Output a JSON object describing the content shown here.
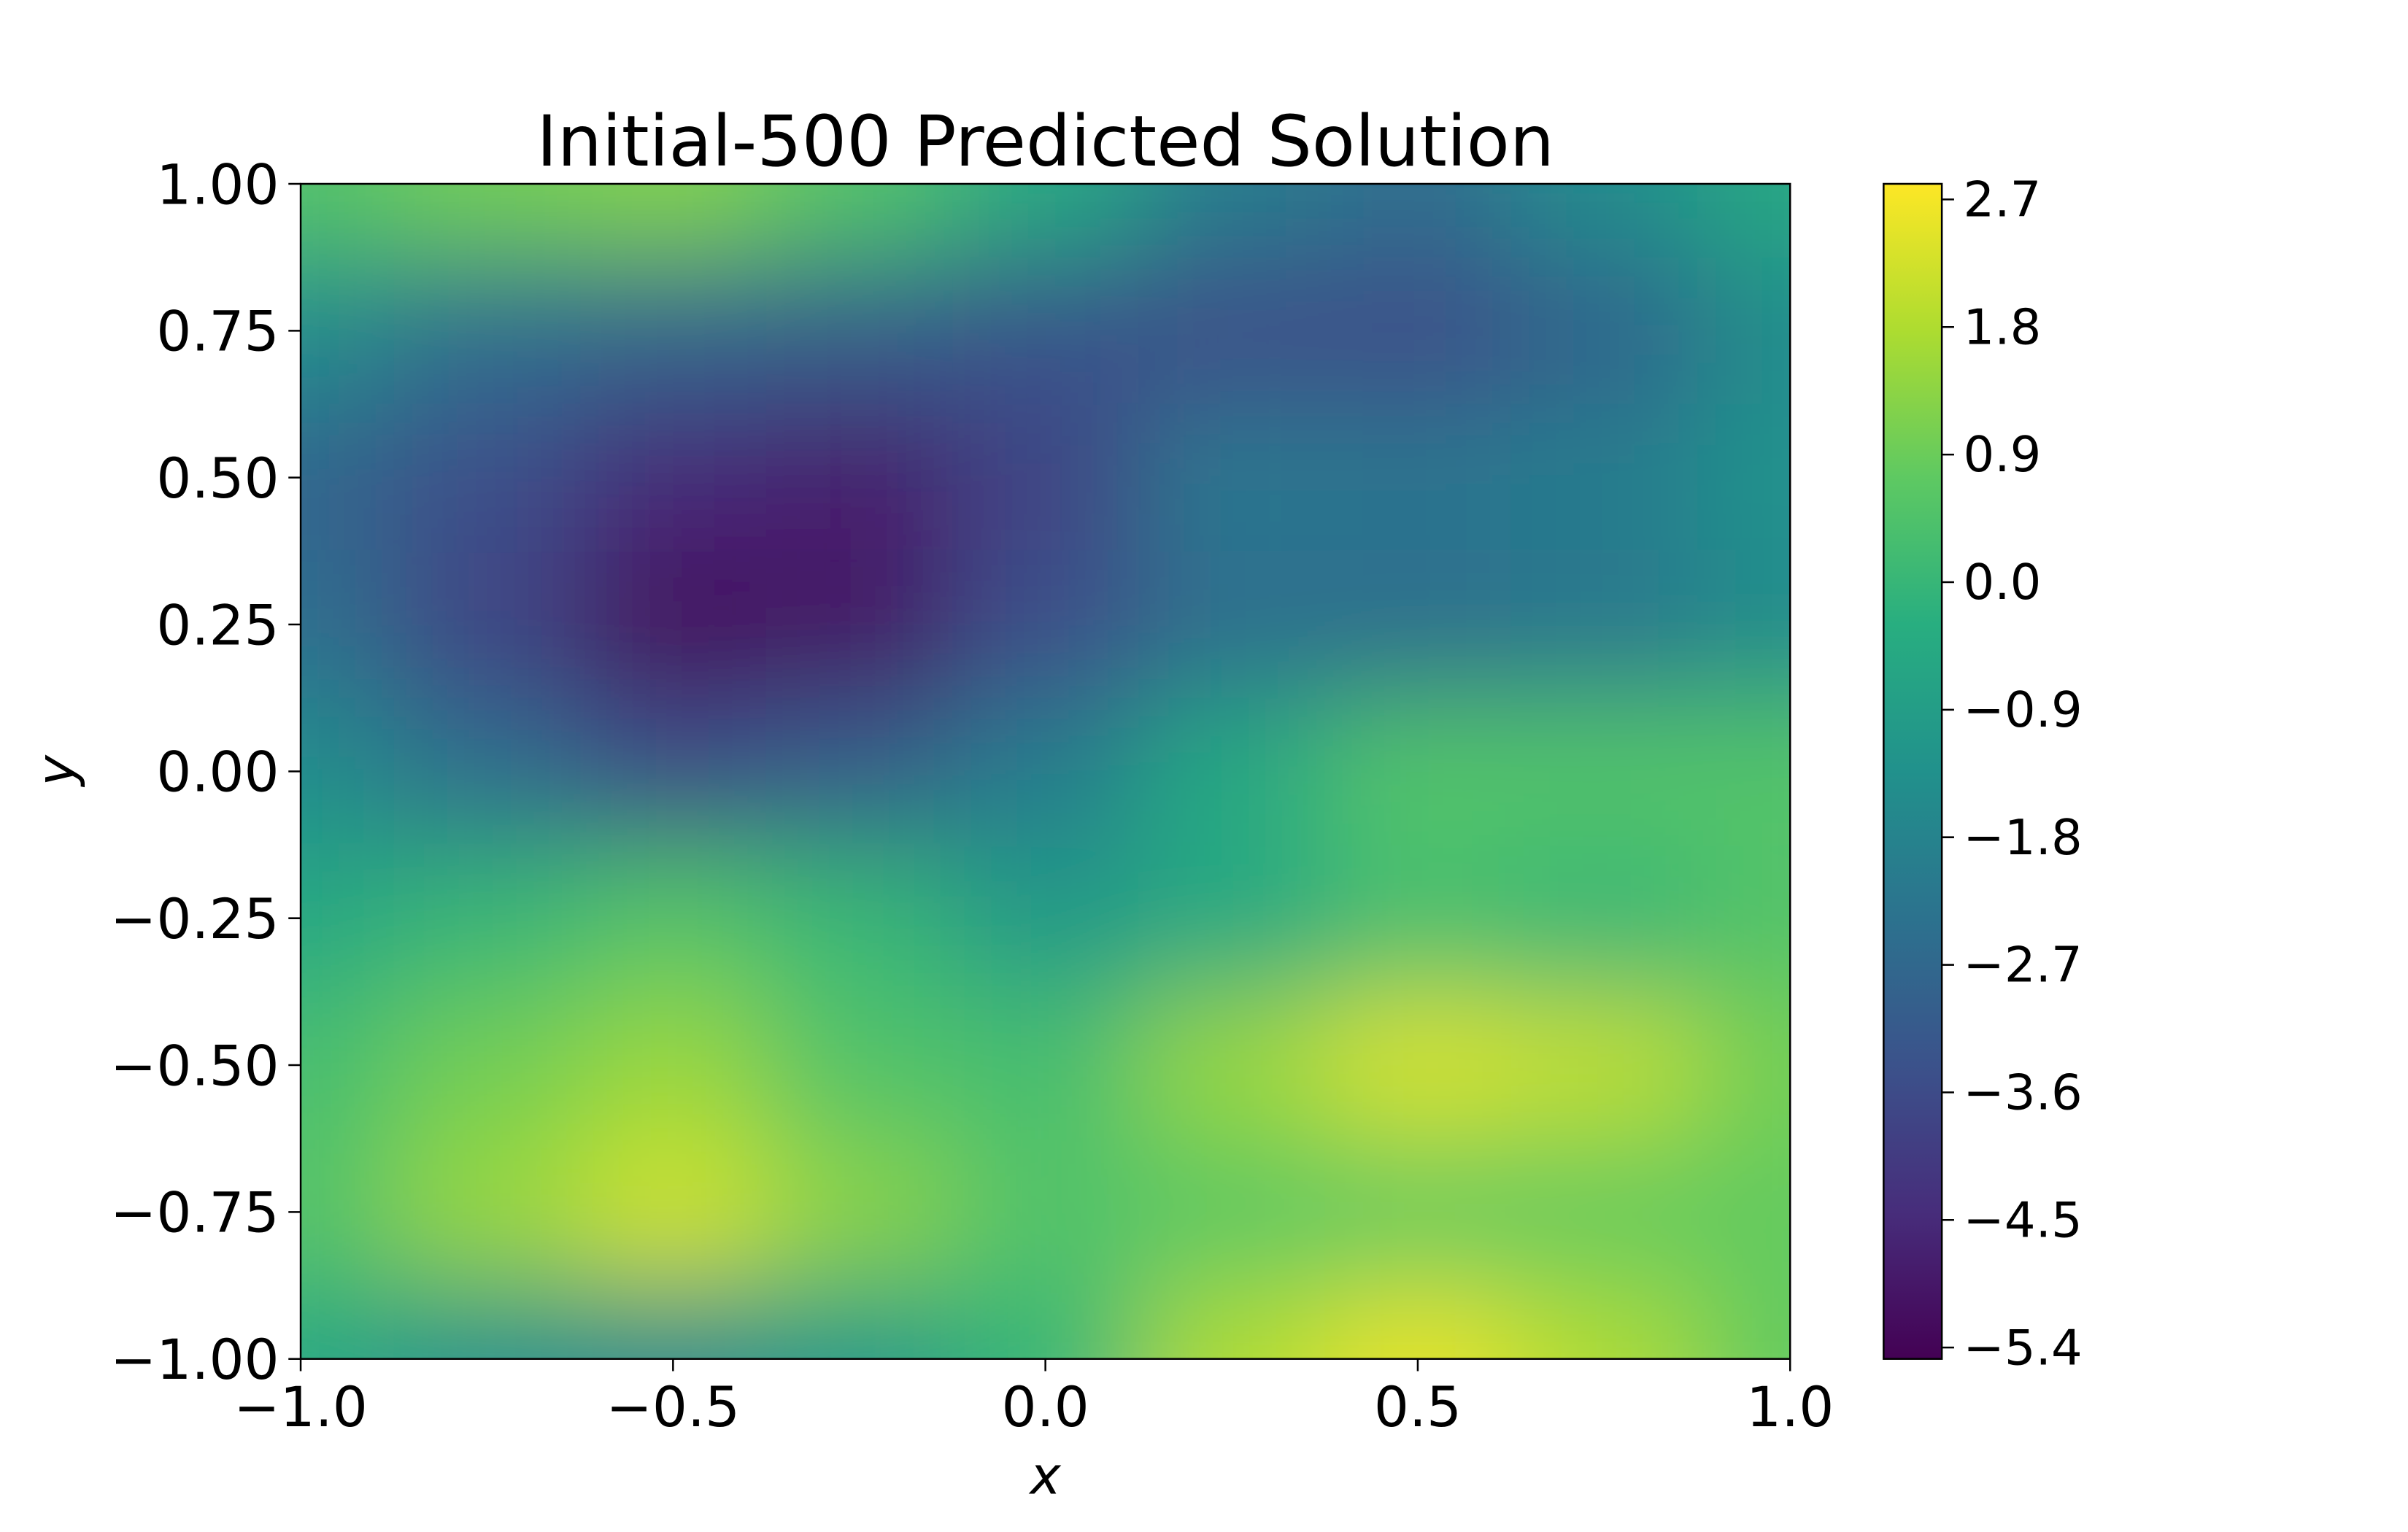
{
  "chart_data": {
    "type": "heatmap",
    "title": "Initial-500 Predicted Solution",
    "x_label": "x",
    "y_label": "y",
    "x": [
      -1.0,
      -0.75,
      -0.5,
      -0.25,
      0.0,
      0.25,
      0.5,
      0.75,
      1.0
    ],
    "y": [
      1.0,
      0.75,
      0.5,
      0.25,
      0.0,
      -0.25,
      -0.5,
      -0.75,
      -1.0
    ],
    "z": [
      [
        0.5,
        1.0,
        1.2,
        0.5,
        -0.5,
        -2.0,
        -2.5,
        -1.5,
        -0.5
      ],
      [
        -1.5,
        -2.5,
        -2.8,
        -3.0,
        -3.3,
        -3.5,
        -3.5,
        -2.8,
        -1.5
      ],
      [
        -2.8,
        -3.5,
        -4.5,
        -4.8,
        -3.8,
        -2.2,
        -2.3,
        -2.0,
        -1.3
      ],
      [
        -2.5,
        -3.8,
        -5.2,
        -5.0,
        -3.5,
        -2.5,
        -2.5,
        -2.2,
        -1.5
      ],
      [
        -1.5,
        -2.5,
        -3.5,
        -3.0,
        -2.0,
        -0.5,
        0.5,
        0.5,
        0.5
      ],
      [
        -0.5,
        0.0,
        0.5,
        0.0,
        -1.0,
        -0.5,
        0.3,
        0.0,
        0.5
      ],
      [
        0.3,
        1.0,
        1.5,
        0.5,
        0.3,
        1.5,
        2.3,
        2.0,
        1.0
      ],
      [
        0.5,
        1.5,
        2.2,
        1.3,
        0.5,
        0.7,
        0.8,
        0.8,
        0.8
      ],
      [
        -0.5,
        -1.3,
        -1.5,
        -1.0,
        0.0,
        1.8,
        2.5,
        1.8,
        0.8
      ]
    ],
    "colormap": "viridis",
    "xlim": [
      -1.0,
      1.0
    ],
    "xticks": [
      {
        "value": -1.0,
        "label": "−1.0"
      },
      {
        "value": -0.5,
        "label": "−0.5"
      },
      {
        "value": 0.0,
        "label": "0.0"
      },
      0.5,
      {
        "value": 1.0,
        "label": "1.0"
      }
    ],
    "ylim": [
      -1.0,
      1.0
    ],
    "yticks": [
      {
        "value": -1.0,
        "label": "−1.00"
      },
      {
        "value": -0.75,
        "label": "−0.75"
      },
      {
        "value": -0.5,
        "label": "−0.50"
      },
      {
        "value": -0.25,
        "label": "−0.25"
      },
      {
        "value": 0.0,
        "label": "0.00"
      },
      {
        "value": 0.25,
        "label": "0.25"
      },
      {
        "value": 0.5,
        "label": "0.50"
      },
      0.75,
      {
        "value": 1.0,
        "label": "1.00"
      }
    ],
    "clim": [
      -5.48,
      2.81
    ],
    "cticks": [
      {
        "value": -5.4,
        "label": "−5.4"
      },
      {
        "value": -4.5,
        "label": "−4.5"
      },
      {
        "value": -3.6,
        "label": "−3.6"
      },
      {
        "value": -2.7,
        "label": "−2.7"
      },
      {
        "value": -1.8,
        "label": "−1.8"
      },
      {
        "value": -0.9,
        "label": "−0.9"
      },
      {
        "value": 0.0,
        "label": "0.0"
      },
      0.9,
      1.8,
      2.7
    ]
  }
}
